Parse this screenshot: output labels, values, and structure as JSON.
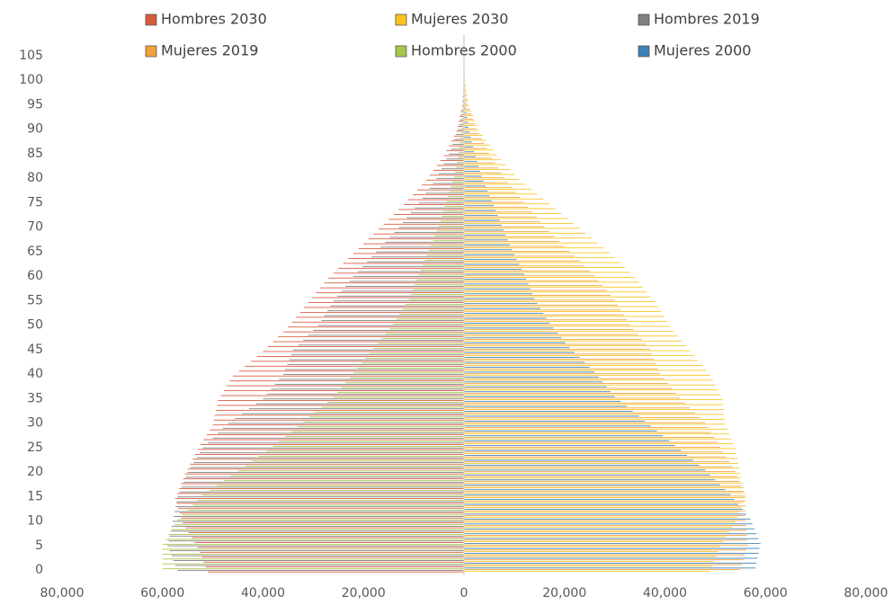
{
  "chart_data": {
    "type": "population-pyramid",
    "categories": [
      0,
      null,
      null,
      null,
      null,
      5,
      null,
      null,
      null,
      null,
      10,
      null,
      null,
      null,
      null,
      15,
      null,
      null,
      null,
      null,
      20,
      null,
      null,
      null,
      null,
      25,
      null,
      null,
      null,
      null,
      30,
      null,
      null,
      null,
      null,
      35,
      null,
      null,
      null,
      null,
      40,
      null,
      null,
      null,
      null,
      45,
      null,
      null,
      null,
      null,
      50,
      null,
      null,
      null,
      null,
      55,
      null,
      null,
      null,
      null,
      60,
      null,
      null,
      null,
      null,
      65,
      null,
      null,
      null,
      null,
      70,
      null,
      null,
      null,
      null,
      75,
      null,
      null,
      null,
      null,
      80,
      null,
      null,
      null,
      null,
      85,
      null,
      null,
      null,
      null,
      90,
      null,
      null,
      null,
      null,
      95,
      null,
      null,
      null,
      null,
      100,
      null,
      null,
      null,
      null,
      105
    ],
    "xlim": [
      -80000,
      80000
    ],
    "xticks": [
      {
        "value": -80000,
        "label": "80,000"
      },
      {
        "value": -60000,
        "label": "60,000"
      },
      {
        "value": -40000,
        "label": "40,000"
      },
      {
        "value": -20000,
        "label": "20,000"
      },
      0,
      {
        "value": 20000,
        "label": "20,000"
      },
      {
        "value": 40000,
        "label": "40,000"
      },
      {
        "value": 60000,
        "label": "60,000"
      },
      {
        "value": 80000,
        "label": "80,000"
      }
    ],
    "series": [
      {
        "name": "Hombres 2030",
        "color": "#d85a3c",
        "values": [
          -51000,
          -51400,
          -51800,
          -52200,
          -52600,
          -53000,
          -53600,
          -54200,
          -54800,
          -55400,
          -56000,
          -56300,
          -56600,
          -56900,
          -57200,
          -57500,
          -57100,
          -56700,
          -56300,
          -55900,
          -55500,
          -55000,
          -54500,
          -54000,
          -53500,
          -53000,
          -52400,
          -51800,
          -51200,
          -50600,
          -50000,
          -49800,
          -49600,
          -49400,
          -49200,
          -49000,
          -48400,
          -47800,
          -47200,
          -46600,
          -46000,
          -44800,
          -43600,
          -42400,
          -41200,
          -40000,
          -39000,
          -38000,
          -37000,
          -36000,
          -35000,
          -34200,
          -33400,
          -32600,
          -31800,
          -31000,
          -30200,
          -29400,
          -28600,
          -27800,
          -27000,
          -26000,
          -25000,
          -24000,
          -23000,
          -22000,
          -21000,
          -20000,
          -19000,
          -18000,
          -17000,
          -16000,
          -15000,
          -14000,
          -13000,
          -12000,
          -11100,
          -10200,
          -9300,
          -8400,
          -7500,
          -6800,
          -6100,
          -5400,
          -4700,
          -4000,
          -3500,
          -3000,
          -2500,
          -2000,
          -1500,
          -1280,
          -1060,
          -840,
          -620,
          -400,
          -330,
          -260,
          -190,
          -120,
          -60,
          -50,
          -40,
          -30,
          -20,
          0
        ]
      },
      {
        "name": "Mujeres 2030",
        "color": "#fcc31e",
        "values": [
          49000,
          49400,
          49800,
          50200,
          50600,
          51000,
          51600,
          52200,
          52800,
          53400,
          54000,
          54400,
          54800,
          55200,
          55600,
          56000,
          55800,
          55600,
          55400,
          55200,
          55000,
          54800,
          54600,
          54400,
          54200,
          54000,
          53600,
          53200,
          52800,
          52400,
          52000,
          51900,
          51800,
          51700,
          51600,
          51500,
          51000,
          50500,
          50000,
          49500,
          49000,
          48200,
          47400,
          46600,
          45800,
          45000,
          44200,
          43400,
          42600,
          41800,
          41000,
          40400,
          39800,
          39200,
          38600,
          38000,
          37200,
          36400,
          35600,
          34800,
          34000,
          33000,
          32000,
          31000,
          30000,
          29000,
          27800,
          26600,
          25400,
          24200,
          23000,
          21800,
          20600,
          19400,
          18200,
          17000,
          15800,
          14600,
          13400,
          12200,
          11000,
          10100,
          9200,
          8300,
          7400,
          6500,
          5800,
          5100,
          4400,
          3700,
          3000,
          2600,
          2200,
          1800,
          1400,
          1000,
          840,
          680,
          520,
          360,
          200,
          160,
          120,
          80,
          40,
          10
        ]
      },
      {
        "name": "Hombres 2019",
        "color": "#7f7f7f",
        "values": [
          -57000,
          -57400,
          -57800,
          -58200,
          -58600,
          -59000,
          -58800,
          -58600,
          -58400,
          -58200,
          -58000,
          -57800,
          -57600,
          -57400,
          -57200,
          -57000,
          -56600,
          -56200,
          -55800,
          -55400,
          -55000,
          -54400,
          -53800,
          -53200,
          -52600,
          -52000,
          -51000,
          -50000,
          -49000,
          -48000,
          -47000,
          -45600,
          -44200,
          -42800,
          -41400,
          -40000,
          -39200,
          -38400,
          -37600,
          -36800,
          -36000,
          -35600,
          -35200,
          -34800,
          -34400,
          -34000,
          -33000,
          -32000,
          -31000,
          -30000,
          -29000,
          -28400,
          -27800,
          -27200,
          -26600,
          -26000,
          -25200,
          -24400,
          -23600,
          -22800,
          -22000,
          -21100,
          -20200,
          -19300,
          -18400,
          -17500,
          -16600,
          -15700,
          -14800,
          -13900,
          -13000,
          -12200,
          -11400,
          -10600,
          -9800,
          -9000,
          -8300,
          -7600,
          -6900,
          -6200,
          -5500,
          -5000,
          -4500,
          -4000,
          -3500,
          -3000,
          -2640,
          -2280,
          -1920,
          -1560,
          -1200,
          -1020,
          -840,
          -660,
          -480,
          -300,
          -250,
          -200,
          -150,
          -100,
          -50,
          -40,
          -30,
          -20,
          -10,
          0
        ]
      },
      {
        "name": "Mujeres 2019",
        "color": "#f2a23b",
        "values": [
          55000,
          55300,
          55600,
          55900,
          56200,
          56500,
          56400,
          56300,
          56200,
          56100,
          56000,
          56000,
          56000,
          56000,
          56000,
          56000,
          55600,
          55200,
          54800,
          54400,
          54000,
          53400,
          52800,
          52200,
          51600,
          51000,
          50400,
          49800,
          49200,
          48600,
          48000,
          47000,
          46000,
          45000,
          44000,
          43000,
          42200,
          41400,
          40600,
          39800,
          39000,
          38600,
          38200,
          37800,
          37400,
          37000,
          36200,
          35400,
          34600,
          33800,
          33000,
          32400,
          31800,
          31200,
          30600,
          30000,
          29200,
          28400,
          27600,
          26800,
          26000,
          25000,
          24000,
          23000,
          22000,
          21000,
          20000,
          19000,
          18000,
          17000,
          16000,
          15200,
          14400,
          13600,
          12800,
          12000,
          11200,
          10400,
          9600,
          8800,
          8000,
          7400,
          6800,
          6200,
          5600,
          5000,
          4500,
          4000,
          3500,
          3000,
          2500,
          2160,
          1820,
          1480,
          1140,
          800,
          670,
          540,
          410,
          280,
          150,
          120,
          90,
          60,
          30,
          10
        ]
      },
      {
        "name": "Hombres 2000",
        "color": "#a8c64a",
        "values": [
          -60000,
          -60000,
          -60000,
          -60000,
          -60000,
          -60000,
          -59400,
          -58800,
          -58200,
          -57600,
          -57000,
          -56000,
          -55000,
          -54000,
          -53000,
          -52000,
          -50600,
          -49200,
          -47800,
          -46400,
          -45000,
          -43600,
          -42200,
          -40800,
          -39400,
          -38000,
          -36800,
          -35600,
          -34400,
          -33200,
          -32000,
          -30800,
          -29600,
          -28400,
          -27200,
          -26000,
          -25200,
          -24400,
          -23600,
          -22800,
          -22000,
          -21200,
          -20400,
          -19600,
          -18800,
          -18000,
          -17200,
          -16400,
          -15600,
          -14800,
          -14000,
          -13400,
          -12800,
          -12200,
          -11600,
          -11000,
          -10600,
          -10200,
          -9800,
          -9400,
          -9000,
          -8600,
          -8200,
          -7800,
          -7400,
          -7000,
          -6600,
          -6200,
          -5800,
          -5400,
          -5000,
          -4700,
          -4400,
          -4100,
          -3800,
          -3500,
          -3200,
          -2900,
          -2600,
          -2300,
          -2000,
          -1800,
          -1600,
          -1400,
          -1200,
          -1000,
          -880,
          -760,
          -640,
          -520,
          -400,
          -340,
          -280,
          -220,
          -160,
          -100,
          -80,
          -60,
          -40,
          -20,
          -10,
          -8,
          -6,
          -4,
          -2,
          0
        ]
      },
      {
        "name": "Mujeres 2000",
        "color": "#3d80b6",
        "values": [
          58000,
          58200,
          58400,
          58600,
          58800,
          59000,
          58600,
          58200,
          57800,
          57400,
          57000,
          56200,
          55400,
          54600,
          53800,
          53000,
          52000,
          51000,
          50000,
          49000,
          48000,
          46800,
          45600,
          44400,
          43200,
          42000,
          40800,
          39600,
          38400,
          37200,
          36000,
          34800,
          33600,
          32400,
          31200,
          30000,
          29200,
          28400,
          27600,
          26800,
          26000,
          25000,
          24000,
          23000,
          22000,
          21000,
          20200,
          19400,
          18600,
          17800,
          17000,
          16400,
          15800,
          15200,
          14600,
          14000,
          13600,
          13200,
          12800,
          12400,
          12000,
          11500,
          11000,
          10500,
          10000,
          9500,
          9100,
          8700,
          8300,
          7900,
          7500,
          7100,
          6700,
          6300,
          5900,
          5500,
          5100,
          4700,
          4300,
          3900,
          3500,
          3200,
          2900,
          2600,
          2300,
          2000,
          1780,
          1560,
          1340,
          1120,
          900,
          770,
          640,
          510,
          380,
          250,
          208,
          166,
          124,
          82,
          40,
          33,
          26,
          19,
          12,
          5
        ]
      }
    ]
  }
}
